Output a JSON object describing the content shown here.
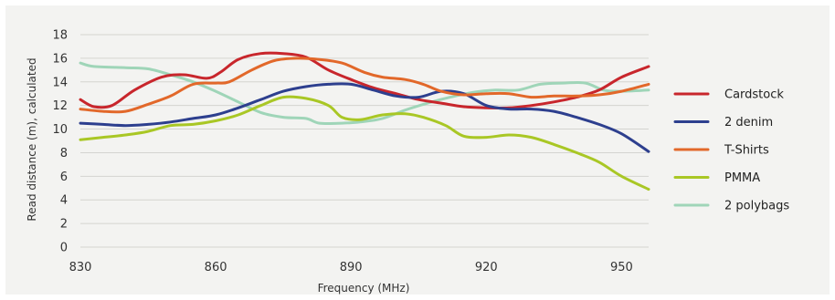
{
  "chart_data": {
    "type": "line",
    "title": "",
    "xlabel": "Frequency (MHz)",
    "ylabel": "Read distance (m), calculated",
    "xlim": [
      830,
      956
    ],
    "ylim": [
      0,
      18
    ],
    "x_ticks": [
      830,
      860,
      890,
      920,
      950
    ],
    "y_ticks": [
      0,
      2,
      4,
      6,
      8,
      10,
      12,
      14,
      16,
      18
    ],
    "grid": true,
    "legend_position": "right",
    "series": [
      {
        "name": "Cardstock",
        "color": "#c8262c",
        "points": [
          [
            830,
            12.5
          ],
          [
            833,
            11.9
          ],
          [
            837,
            12.0
          ],
          [
            842,
            13.3
          ],
          [
            848,
            14.4
          ],
          [
            853,
            14.6
          ],
          [
            858,
            14.3
          ],
          [
            861,
            14.8
          ],
          [
            865,
            15.9
          ],
          [
            870,
            16.4
          ],
          [
            875,
            16.4
          ],
          [
            880,
            16.1
          ],
          [
            885,
            15.0
          ],
          [
            890,
            14.2
          ],
          [
            895,
            13.5
          ],
          [
            900,
            13.0
          ],
          [
            905,
            12.5
          ],
          [
            910,
            12.2
          ],
          [
            915,
            11.9
          ],
          [
            920,
            11.8
          ],
          [
            925,
            11.8
          ],
          [
            930,
            12.0
          ],
          [
            935,
            12.3
          ],
          [
            940,
            12.7
          ],
          [
            945,
            13.3
          ],
          [
            950,
            14.4
          ],
          [
            956,
            15.3
          ]
        ]
      },
      {
        "name": "2 denim",
        "color": "#2d3f8e",
        "points": [
          [
            830,
            10.5
          ],
          [
            835,
            10.4
          ],
          [
            840,
            10.3
          ],
          [
            845,
            10.4
          ],
          [
            850,
            10.6
          ],
          [
            855,
            10.9
          ],
          [
            860,
            11.2
          ],
          [
            865,
            11.8
          ],
          [
            870,
            12.5
          ],
          [
            875,
            13.2
          ],
          [
            880,
            13.6
          ],
          [
            885,
            13.8
          ],
          [
            890,
            13.8
          ],
          [
            895,
            13.3
          ],
          [
            900,
            12.8
          ],
          [
            905,
            12.7
          ],
          [
            910,
            13.2
          ],
          [
            915,
            13.0
          ],
          [
            920,
            12.0
          ],
          [
            925,
            11.7
          ],
          [
            930,
            11.7
          ],
          [
            935,
            11.5
          ],
          [
            940,
            11.0
          ],
          [
            945,
            10.4
          ],
          [
            950,
            9.6
          ],
          [
            956,
            8.1
          ]
        ]
      },
      {
        "name": "T-Shirts",
        "color": "#e2682a",
        "points": [
          [
            830,
            11.7
          ],
          [
            835,
            11.5
          ],
          [
            840,
            11.5
          ],
          [
            845,
            12.1
          ],
          [
            850,
            12.8
          ],
          [
            855,
            13.8
          ],
          [
            860,
            13.9
          ],
          [
            863,
            14.0
          ],
          [
            868,
            15.0
          ],
          [
            873,
            15.8
          ],
          [
            878,
            16.0
          ],
          [
            883,
            15.9
          ],
          [
            888,
            15.6
          ],
          [
            893,
            14.8
          ],
          [
            897,
            14.4
          ],
          [
            902,
            14.2
          ],
          [
            906,
            13.8
          ],
          [
            910,
            13.2
          ],
          [
            915,
            12.9
          ],
          [
            920,
            13.0
          ],
          [
            925,
            13.0
          ],
          [
            930,
            12.7
          ],
          [
            935,
            12.8
          ],
          [
            940,
            12.8
          ],
          [
            945,
            12.9
          ],
          [
            950,
            13.2
          ],
          [
            956,
            13.8
          ]
        ]
      },
      {
        "name": "PMMA",
        "color": "#a9c725",
        "points": [
          [
            830,
            9.1
          ],
          [
            835,
            9.3
          ],
          [
            840,
            9.5
          ],
          [
            845,
            9.8
          ],
          [
            850,
            10.3
          ],
          [
            855,
            10.4
          ],
          [
            860,
            10.7
          ],
          [
            865,
            11.2
          ],
          [
            870,
            12.0
          ],
          [
            875,
            12.7
          ],
          [
            880,
            12.6
          ],
          [
            885,
            12.0
          ],
          [
            888,
            11.0
          ],
          [
            892,
            10.8
          ],
          [
            897,
            11.2
          ],
          [
            902,
            11.3
          ],
          [
            906,
            11.0
          ],
          [
            911,
            10.3
          ],
          [
            915,
            9.4
          ],
          [
            920,
            9.3
          ],
          [
            925,
            9.5
          ],
          [
            930,
            9.3
          ],
          [
            935,
            8.7
          ],
          [
            940,
            8.0
          ],
          [
            945,
            7.2
          ],
          [
            950,
            6.0
          ],
          [
            956,
            4.9
          ]
        ]
      },
      {
        "name": "2 polybags",
        "color": "#9fd5b8",
        "points": [
          [
            830,
            15.6
          ],
          [
            833,
            15.3
          ],
          [
            840,
            15.2
          ],
          [
            845,
            15.1
          ],
          [
            850,
            14.6
          ],
          [
            855,
            14.0
          ],
          [
            860,
            13.2
          ],
          [
            865,
            12.3
          ],
          [
            870,
            11.4
          ],
          [
            875,
            11.0
          ],
          [
            880,
            10.9
          ],
          [
            883,
            10.5
          ],
          [
            888,
            10.5
          ],
          [
            892,
            10.6
          ],
          [
            897,
            10.9
          ],
          [
            902,
            11.6
          ],
          [
            907,
            12.2
          ],
          [
            912,
            12.7
          ],
          [
            917,
            13.1
          ],
          [
            922,
            13.3
          ],
          [
            927,
            13.3
          ],
          [
            932,
            13.8
          ],
          [
            937,
            13.9
          ],
          [
            942,
            13.9
          ],
          [
            946,
            13.3
          ],
          [
            950,
            13.2
          ],
          [
            956,
            13.3
          ]
        ]
      }
    ]
  }
}
